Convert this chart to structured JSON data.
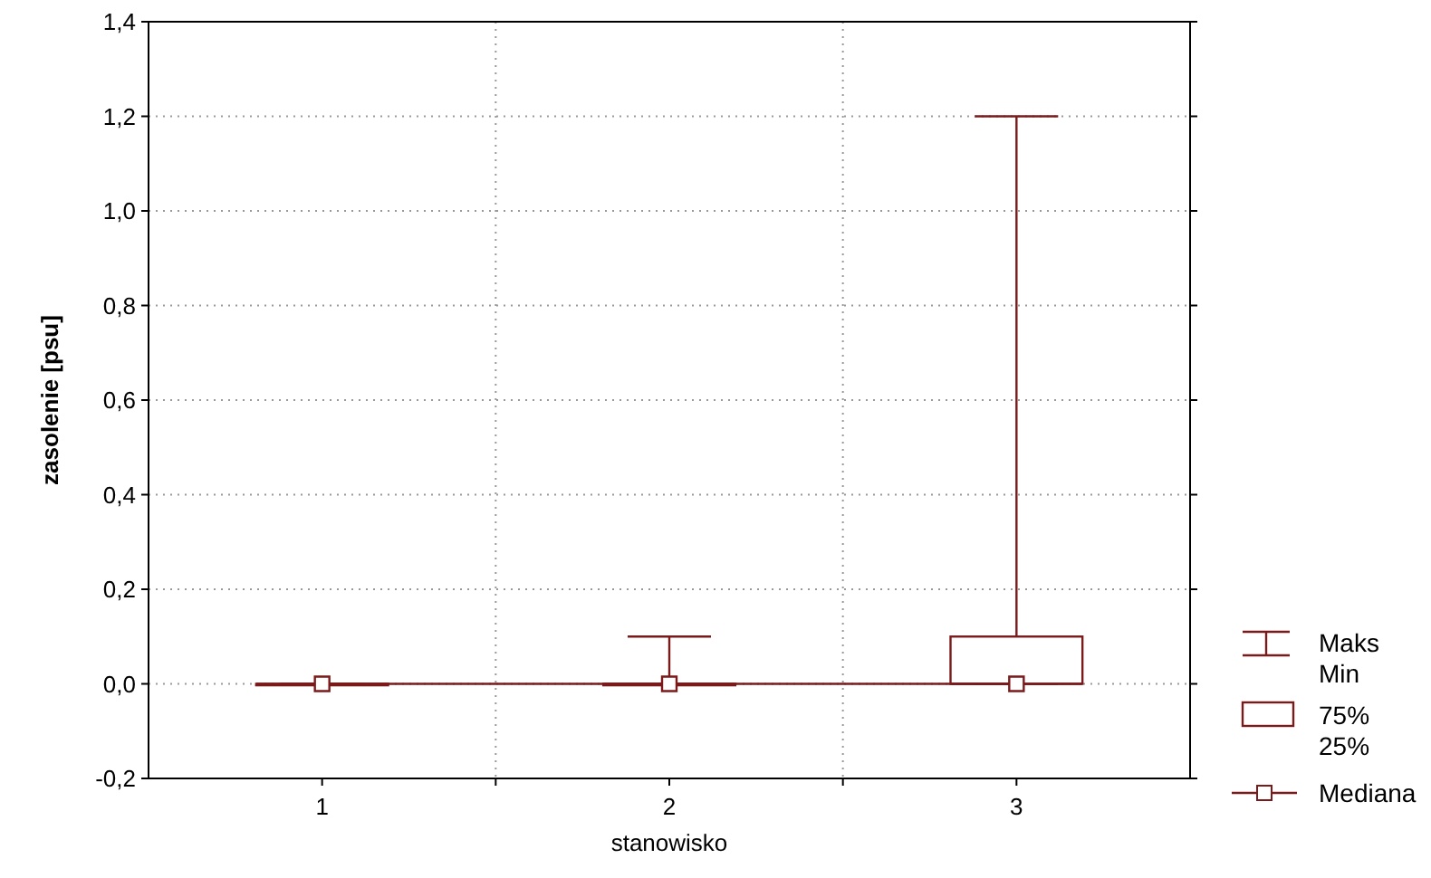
{
  "chart_data": {
    "type": "box",
    "xlabel": "stanowisko",
    "ylabel": "zasolenie [psu]",
    "categories": [
      "1",
      "2",
      "3"
    ],
    "ylim": [
      -0.2,
      1.4
    ],
    "yticks": [
      {
        "value": -0.2,
        "label": "-0,2"
      },
      {
        "value": 0,
        "label": "0,0"
      },
      {
        "value": 0.2,
        "label": "0,2"
      },
      {
        "value": 0.4,
        "label": "0,4"
      },
      {
        "value": 0.6,
        "label": "0,6"
      },
      {
        "value": 0.8,
        "label": "0,8"
      },
      {
        "value": 1.0,
        "label": "1,0"
      },
      {
        "value": 1.2,
        "label": "1,2"
      },
      {
        "value": 1.4,
        "label": "1,4"
      }
    ],
    "grid": true,
    "legend": "bottom right",
    "annotations": [
      "Maks",
      "Min",
      "75%",
      "25%"
    ],
    "series": [
      {
        "type": "box",
        "color": "#7b1a1a",
        "boxes": [
          {
            "low": 0,
            "q1": 0,
            "median": 0,
            "q3": 0,
            "high": 0
          },
          {
            "low": 0,
            "q1": 0,
            "median": 0,
            "q3": 0,
            "high": 0.1
          },
          {
            "low": 0,
            "q1": 0,
            "median": 0,
            "q3": 0.1,
            "high": 1.2
          }
        ]
      },
      {
        "type": "line",
        "name": "Mediana",
        "color": "#7b1a1a",
        "marker": "square",
        "values": [
          0,
          0,
          0
        ]
      }
    ]
  }
}
